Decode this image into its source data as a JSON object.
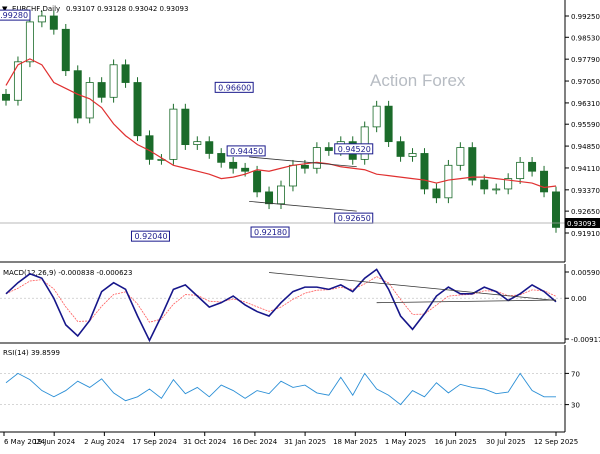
{
  "chart_data": [
    {
      "type": "candlestick",
      "header": {
        "symbol_label": "EURCHF,Daily",
        "ohlc_text": "0.93107 0.93128 0.93042 0.93093"
      },
      "watermark": "Action Forex",
      "ohlc_last": {
        "open": 0.93107,
        "high": 0.93128,
        "low": 0.93042,
        "close": 0.93093
      },
      "y_range": [
        0.9163,
        0.9266
      ],
      "y_ticks": [
        "0.99250",
        "0.98530",
        "0.97790",
        "0.97050",
        "0.96310",
        "0.95590",
        "0.94850",
        "0.94110",
        "0.93370",
        "0.92650",
        "0.91910"
      ],
      "last_price_label": "0.93093",
      "x_tick_labels": [
        "6 May 2024",
        "19 Jun 2024",
        "2 Aug 2024",
        "17 Sep 2024",
        "31 Oct 2024",
        "16 Dec 2024",
        "31 Jan 2025",
        "18 Mar 2025",
        "1 May 2025",
        "16 Jun 2025",
        "30 Jul 2025",
        "12 Sep 2025"
      ],
      "close_series": [
        0.964,
        0.977,
        0.9905,
        0.9925,
        0.988,
        0.974,
        0.958,
        0.97,
        0.965,
        0.976,
        0.97,
        0.952,
        0.944,
        0.944,
        0.961,
        0.949,
        0.95,
        0.946,
        0.943,
        0.941,
        0.94,
        0.933,
        0.929,
        0.935,
        0.942,
        0.941,
        0.948,
        0.947,
        0.95,
        0.944,
        0.955,
        0.962,
        0.95,
        0.945,
        0.946,
        0.934,
        0.931,
        0.942,
        0.948,
        0.937,
        0.934,
        0.934,
        0.9375,
        0.943,
        0.94,
        0.933,
        0.921
      ],
      "ma_series": [
        0.969,
        0.976,
        0.978,
        0.976,
        0.97,
        0.968,
        0.966,
        0.9645,
        0.9615,
        0.956,
        0.952,
        0.949,
        0.947,
        0.9445,
        0.942,
        0.941,
        0.94,
        0.939,
        0.9375,
        0.938,
        0.939,
        0.9405,
        0.94,
        0.941,
        0.942,
        0.9425,
        0.943,
        0.9425,
        0.9415,
        0.941,
        0.9405,
        0.939,
        0.9385,
        0.938,
        0.9375,
        0.937,
        0.936,
        0.937,
        0.9375,
        0.938,
        0.938,
        0.9375,
        0.937,
        0.9365,
        0.936,
        0.9345,
        0.935
      ],
      "annotations": [
        {
          "label": "0.99280",
          "price": 0.9928,
          "bar": 2,
          "pos": "left-edge"
        },
        {
          "label": "0.96600",
          "price": 0.966,
          "bar": 19,
          "pos": "above"
        },
        {
          "label": "0.94450",
          "price": 0.9445,
          "bar": 20,
          "pos": "above"
        },
        {
          "label": "0.92040",
          "price": 0.9204,
          "bar": 12,
          "pos": "below"
        },
        {
          "label": "0.92180",
          "price": 0.9218,
          "bar": 22,
          "pos": "below"
        },
        {
          "label": "0.94520",
          "price": 0.9452,
          "bar": 29,
          "pos": "above"
        },
        {
          "label": "0.92650",
          "price": 0.9265,
          "bar": 29,
          "pos": "below"
        }
      ],
      "trend_channel": {
        "upper": [
          0.9448,
          0.9415
        ],
        "lower": [
          0.9298,
          0.9265
        ]
      }
    },
    {
      "type": "macd",
      "label": "MACD(12,26,9) -0.000838 -0.000623",
      "params": [
        12,
        26,
        9
      ],
      "values": {
        "macd": -0.000838,
        "signal": -0.000623
      },
      "y_ticks": [
        "0.005907",
        "0.00",
        "-0.009175"
      ],
      "macd_series": [
        0.001,
        0.0035,
        0.0055,
        0.0045,
        0.0,
        -0.006,
        -0.0085,
        -0.005,
        0.0015,
        0.0035,
        0.002,
        -0.004,
        -0.0095,
        -0.004,
        0.002,
        0.003,
        0.0005,
        -0.002,
        -0.001,
        0.0005,
        -0.0015,
        -0.003,
        -0.004,
        -0.001,
        0.0015,
        0.0025,
        0.0025,
        0.002,
        0.003,
        0.0015,
        0.0045,
        0.0065,
        0.002,
        -0.004,
        -0.007,
        -0.0035,
        0.0005,
        0.0025,
        0.001,
        0.001,
        0.0025,
        0.0015,
        -0.0005,
        0.001,
        0.003,
        0.0015,
        -0.0008
      ]
    },
    {
      "type": "rsi",
      "label": "RSI(14) 39.8599",
      "value": 39.8599,
      "y_ticks": [
        "70",
        "30"
      ],
      "rsi_series": [
        58,
        70,
        62,
        48,
        40,
        48,
        60,
        52,
        63,
        45,
        35,
        40,
        50,
        38,
        62,
        44,
        52,
        40,
        55,
        48,
        38,
        48,
        44,
        60,
        52,
        55,
        45,
        42,
        65,
        42,
        70,
        50,
        42,
        30,
        48,
        40,
        58,
        45,
        56,
        52,
        50,
        44,
        46,
        70,
        48,
        40,
        40
      ]
    }
  ]
}
